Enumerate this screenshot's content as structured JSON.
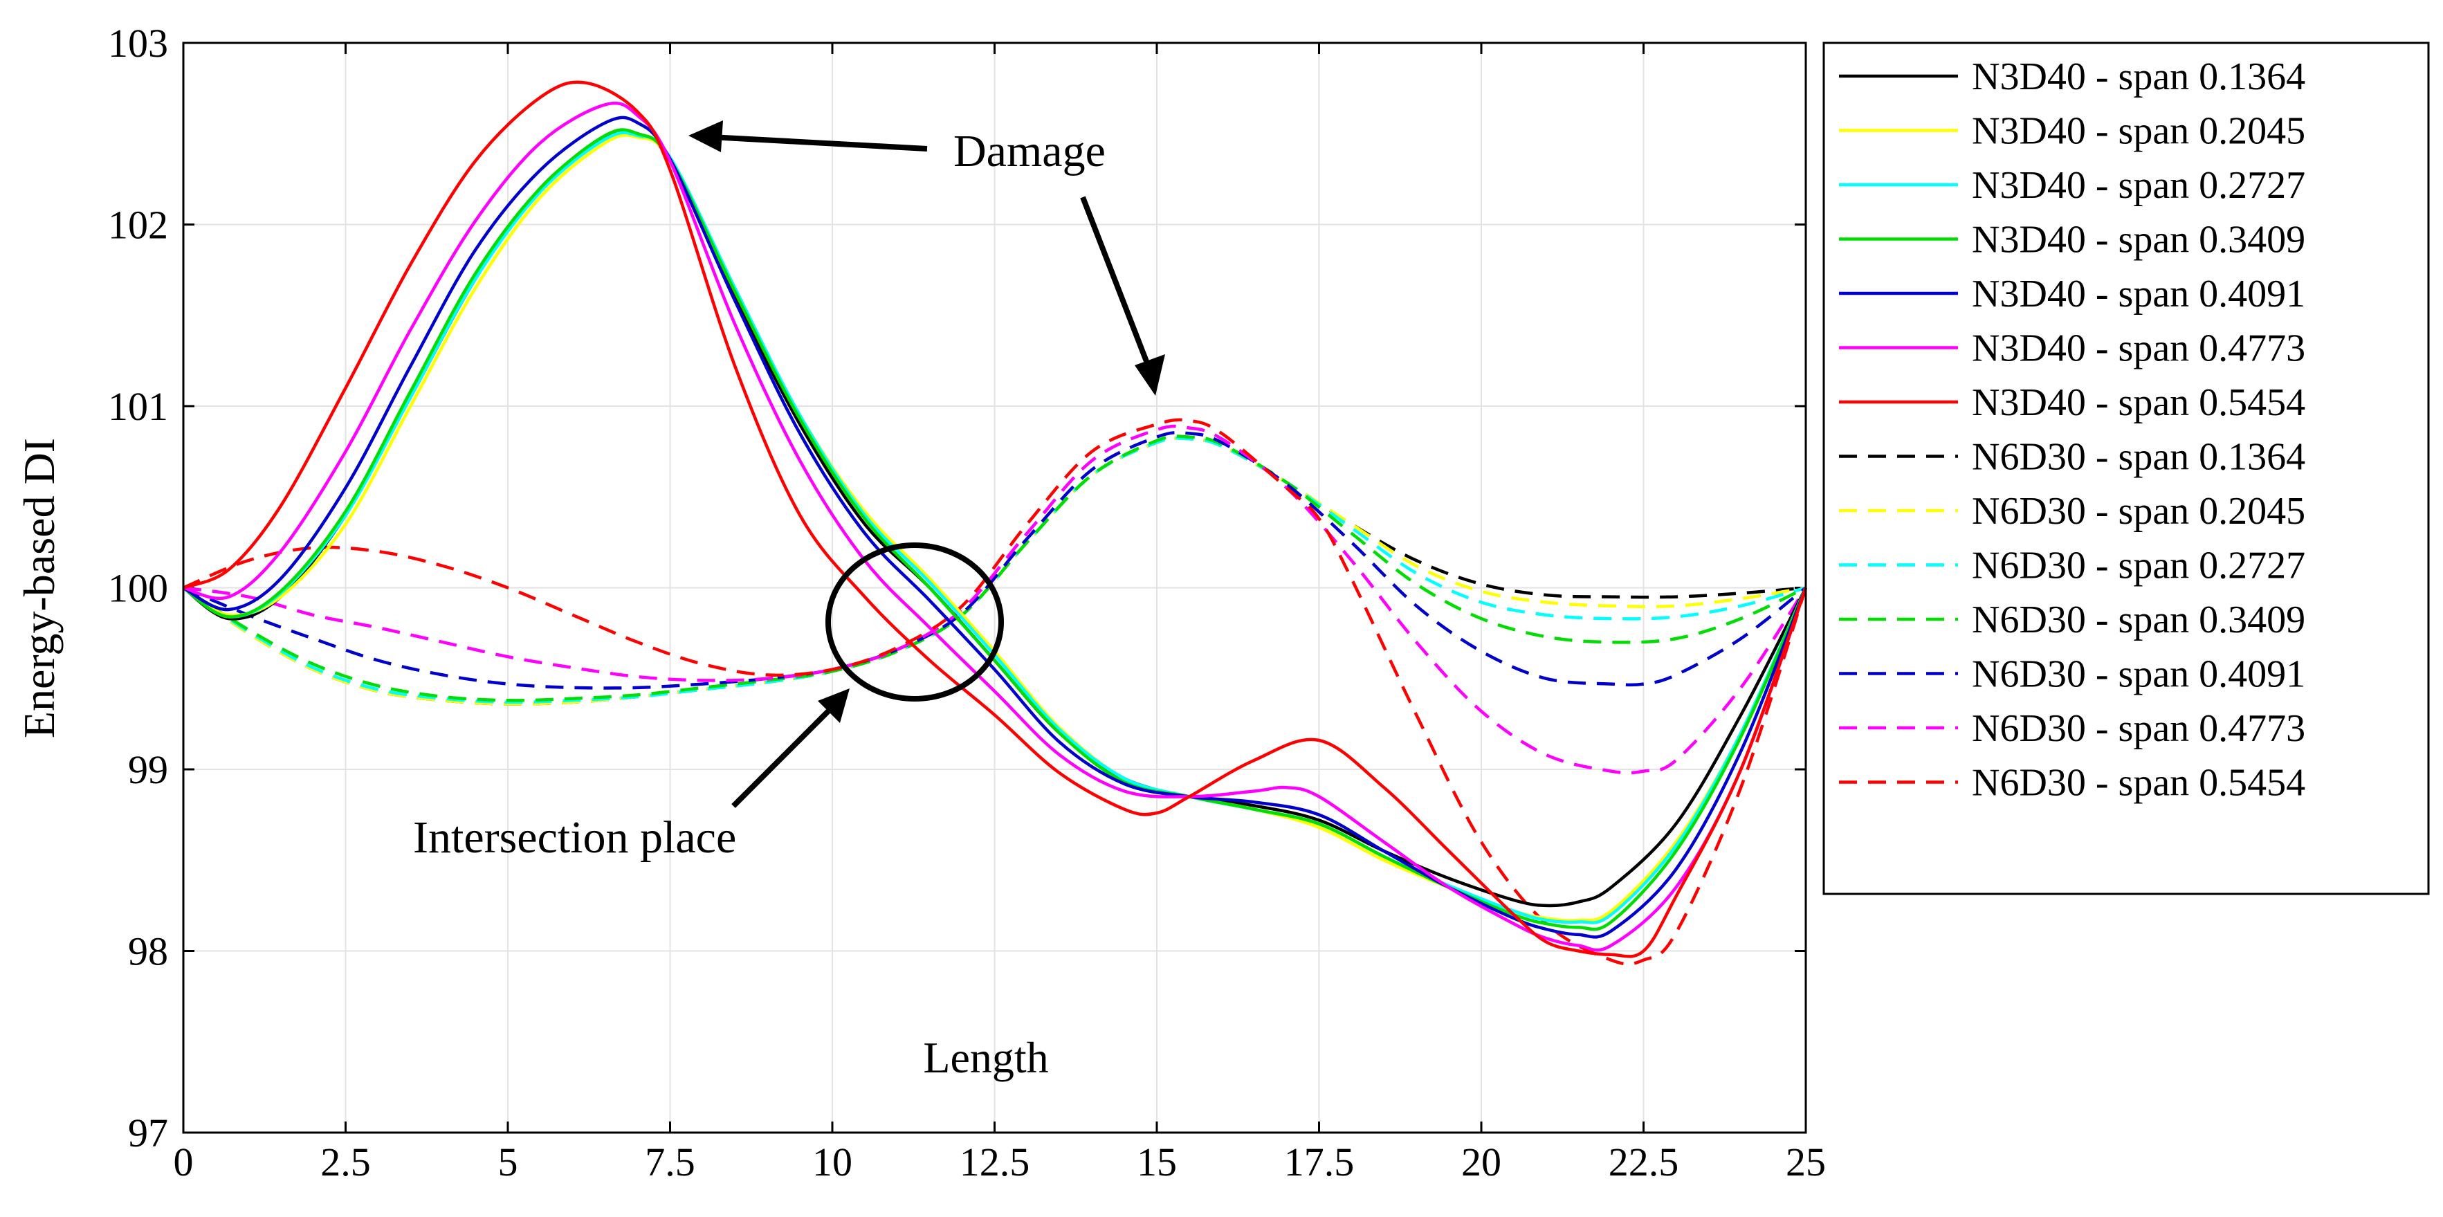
{
  "chart_data": {
    "type": "line",
    "title": "",
    "xlabel": "Length",
    "ylabel": "Energy-based DI",
    "xlim": [
      0,
      25
    ],
    "ylim": [
      97,
      103
    ],
    "xticks": [
      0,
      2.5,
      5,
      7.5,
      10,
      12.5,
      15,
      17.5,
      20,
      22.5,
      25
    ],
    "xtick_labels": [
      "0",
      "2.5",
      "5",
      "7.5",
      "10",
      "12.5",
      "15",
      "17.5",
      "20",
      "22.5",
      "25"
    ],
    "yticks": [
      97,
      98,
      99,
      100,
      101,
      102,
      103
    ],
    "ytick_labels": [
      "97",
      "98",
      "99",
      "100",
      "101",
      "102",
      "103"
    ],
    "grid": true,
    "legend_position": "outside-right",
    "series": [
      {
        "name": "N3D40 - span 0.1364",
        "color": "#000000",
        "dash": "solid",
        "x": [
          0,
          0.7,
          1.5,
          2.5,
          3.5,
          4.5,
          5.5,
          6.5,
          7.0,
          7.5,
          8.5,
          9.5,
          10.5,
          11.5,
          12.5,
          13.5,
          14.5,
          15.5,
          16.5,
          17.5,
          18.5,
          19.5,
          20.5,
          21.0,
          21.5,
          22.0,
          23.0,
          24.0,
          25
        ],
        "y": [
          100,
          99.83,
          99.95,
          100.4,
          101.05,
          101.7,
          102.2,
          102.48,
          102.5,
          102.35,
          101.6,
          100.9,
          100.35,
          100.0,
          99.6,
          99.2,
          98.95,
          98.85,
          98.8,
          98.72,
          98.55,
          98.4,
          98.28,
          98.25,
          98.27,
          98.35,
          98.7,
          99.3,
          100
        ]
      },
      {
        "name": "N3D40 - span 0.2045",
        "color": "#ffff00",
        "dash": "solid",
        "x": [
          0,
          0.7,
          1.5,
          2.5,
          3.5,
          4.5,
          5.5,
          6.5,
          7.0,
          7.5,
          8.5,
          9.5,
          10.5,
          11.5,
          12.5,
          13.5,
          14.5,
          15.5,
          16.5,
          17.5,
          18.5,
          19.5,
          20.5,
          21.0,
          21.5,
          22.0,
          23.0,
          24.0,
          25
        ],
        "y": [
          100,
          99.85,
          99.95,
          100.35,
          101.0,
          101.65,
          102.15,
          102.45,
          102.48,
          102.36,
          101.65,
          100.95,
          100.42,
          100.05,
          99.65,
          99.23,
          98.95,
          98.85,
          98.78,
          98.68,
          98.5,
          98.35,
          98.22,
          98.18,
          98.17,
          98.22,
          98.6,
          99.2,
          100
        ]
      },
      {
        "name": "N3D40 - span 0.2727",
        "color": "#00ffff",
        "dash": "solid",
        "x": [
          0,
          0.7,
          1.5,
          2.5,
          3.5,
          4.5,
          5.5,
          6.5,
          7.0,
          7.5,
          8.5,
          9.5,
          10.5,
          11.5,
          12.5,
          13.5,
          14.5,
          15.5,
          16.5,
          17.5,
          18.5,
          19.5,
          20.5,
          21.0,
          21.5,
          22.0,
          23.0,
          24.0,
          25
        ],
        "y": [
          100,
          99.84,
          99.97,
          100.4,
          101.05,
          101.7,
          102.18,
          102.47,
          102.49,
          102.37,
          101.65,
          100.95,
          100.4,
          100.03,
          99.63,
          99.22,
          98.95,
          98.85,
          98.78,
          98.7,
          98.52,
          98.36,
          98.22,
          98.17,
          98.16,
          98.2,
          98.58,
          99.2,
          100
        ]
      },
      {
        "name": "N3D40 - span 0.3409",
        "color": "#00dd00",
        "dash": "solid",
        "x": [
          0,
          0.7,
          1.5,
          2.5,
          3.5,
          4.5,
          5.5,
          6.5,
          7.0,
          7.5,
          8.5,
          9.5,
          10.5,
          11.5,
          12.5,
          13.5,
          14.5,
          15.5,
          16.5,
          17.5,
          18.5,
          19.5,
          20.5,
          21.0,
          21.5,
          22.0,
          23.0,
          24.0,
          25
        ],
        "y": [
          100,
          99.84,
          99.98,
          100.42,
          101.08,
          101.73,
          102.2,
          102.49,
          102.5,
          102.36,
          101.63,
          100.93,
          100.38,
          100.0,
          99.6,
          99.2,
          98.93,
          98.85,
          98.78,
          98.7,
          98.52,
          98.35,
          98.2,
          98.15,
          98.13,
          98.16,
          98.55,
          99.18,
          100
        ]
      },
      {
        "name": "N3D40 - span 0.4091",
        "color": "#0000cc",
        "dash": "solid",
        "x": [
          0,
          0.7,
          1.5,
          2.5,
          3.5,
          4.5,
          5.5,
          6.5,
          7.0,
          7.5,
          8.5,
          9.5,
          10.5,
          11.5,
          12.5,
          13.5,
          14.5,
          15.5,
          16.5,
          17.5,
          18.5,
          19.5,
          20.5,
          21.0,
          21.5,
          22.0,
          23.0,
          24.0,
          25
        ],
        "y": [
          100,
          99.88,
          100.05,
          100.55,
          101.22,
          101.86,
          102.3,
          102.56,
          102.56,
          102.36,
          101.58,
          100.85,
          100.3,
          99.93,
          99.55,
          99.15,
          98.92,
          98.85,
          98.82,
          98.75,
          98.55,
          98.35,
          98.18,
          98.12,
          98.09,
          98.11,
          98.45,
          99.1,
          100
        ]
      },
      {
        "name": "N3D40 - span 0.4773",
        "color": "#ff00ff",
        "dash": "solid",
        "x": [
          0,
          0.7,
          1.5,
          2.5,
          3.5,
          4.5,
          5.5,
          6.5,
          7.0,
          7.5,
          8.5,
          9.5,
          10.5,
          11.5,
          12.5,
          13.5,
          14.5,
          15.5,
          16.5,
          17.0,
          17.5,
          18.5,
          19.5,
          20.5,
          21.0,
          21.5,
          22.0,
          23.0,
          24.0,
          25
        ],
        "y": [
          100,
          99.95,
          100.2,
          100.75,
          101.42,
          102.02,
          102.45,
          102.66,
          102.6,
          102.35,
          101.45,
          100.7,
          100.15,
          99.78,
          99.43,
          99.08,
          98.88,
          98.85,
          98.88,
          98.9,
          98.85,
          98.6,
          98.35,
          98.15,
          98.07,
          98.03,
          98.03,
          98.35,
          99.0,
          100
        ]
      },
      {
        "name": "N3D40 - span 0.5454",
        "color": "#ff0000",
        "dash": "solid",
        "x": [
          0,
          0.7,
          1.5,
          2.5,
          3.5,
          4.5,
          5.5,
          6.2,
          7.0,
          7.5,
          8.5,
          9.5,
          10.5,
          11.5,
          12.5,
          13.5,
          14.5,
          15.0,
          15.5,
          16.5,
          17.5,
          18.5,
          19.5,
          20.5,
          21.0,
          21.5,
          22.0,
          22.5,
          23.0,
          24.0,
          25
        ],
        "y": [
          100,
          100.1,
          100.45,
          101.1,
          101.78,
          102.35,
          102.7,
          102.78,
          102.62,
          102.3,
          101.22,
          100.4,
          99.95,
          99.6,
          99.3,
          98.98,
          98.78,
          98.76,
          98.85,
          99.05,
          99.16,
          98.9,
          98.55,
          98.2,
          98.05,
          98.0,
          97.98,
          98.0,
          98.3,
          99.0,
          100
        ]
      },
      {
        "name": "N6D30 - span 0.1364",
        "color": "#000000",
        "dash": "dashed",
        "x": [
          0,
          1,
          2,
          3,
          4,
          5,
          6,
          7,
          8,
          9,
          10,
          11,
          12,
          13,
          14,
          15,
          15.5,
          16,
          17,
          18,
          19,
          20,
          21,
          22,
          23,
          24,
          25
        ],
        "y": [
          100,
          99.75,
          99.55,
          99.43,
          99.38,
          99.36,
          99.37,
          99.4,
          99.44,
          99.48,
          99.54,
          99.65,
          99.85,
          100.25,
          100.62,
          100.8,
          100.82,
          100.78,
          100.58,
          100.35,
          100.15,
          100.02,
          99.96,
          99.95,
          99.95,
          99.97,
          100
        ]
      },
      {
        "name": "N6D30 - span 0.2045",
        "color": "#ffff00",
        "dash": "dashed",
        "x": [
          0,
          1,
          2,
          3,
          4,
          5,
          6,
          7,
          8,
          9,
          10,
          11,
          12,
          13,
          14,
          15,
          15.5,
          16,
          17,
          18,
          19,
          20,
          21,
          22,
          23,
          24,
          25
        ],
        "y": [
          100,
          99.75,
          99.55,
          99.43,
          99.38,
          99.36,
          99.37,
          99.4,
          99.44,
          99.48,
          99.54,
          99.65,
          99.85,
          100.25,
          100.62,
          100.8,
          100.82,
          100.78,
          100.58,
          100.35,
          100.12,
          99.98,
          99.92,
          99.9,
          99.9,
          99.94,
          100
        ]
      },
      {
        "name": "N6D30 - span 0.2727",
        "color": "#00ffff",
        "dash": "dashed",
        "x": [
          0,
          1,
          2,
          3,
          4,
          5,
          6,
          7,
          8,
          9,
          10,
          11,
          12,
          13,
          14,
          15,
          15.5,
          16,
          17,
          18,
          19,
          20,
          21,
          22,
          23,
          24,
          25
        ],
        "y": [
          100,
          99.76,
          99.56,
          99.44,
          99.39,
          99.37,
          99.38,
          99.4,
          99.44,
          99.48,
          99.54,
          99.65,
          99.85,
          100.25,
          100.62,
          100.8,
          100.82,
          100.78,
          100.58,
          100.33,
          100.08,
          99.92,
          99.85,
          99.83,
          99.84,
          99.9,
          100
        ]
      },
      {
        "name": "N6D30 - span 0.3409",
        "color": "#00dd00",
        "dash": "dashed",
        "x": [
          0,
          1,
          2,
          3,
          4,
          5,
          6,
          7,
          8,
          9,
          10,
          11,
          12,
          13,
          14,
          15,
          15.5,
          16,
          17,
          18,
          19,
          20,
          21,
          22,
          23,
          24,
          25
        ],
        "y": [
          100,
          99.77,
          99.58,
          99.46,
          99.4,
          99.38,
          99.39,
          99.41,
          99.45,
          99.49,
          99.54,
          99.65,
          99.85,
          100.25,
          100.62,
          100.81,
          100.83,
          100.79,
          100.58,
          100.3,
          100.02,
          99.83,
          99.73,
          99.7,
          99.72,
          99.83,
          100
        ]
      },
      {
        "name": "N6D30 - span 0.4091",
        "color": "#0000cc",
        "dash": "dashed",
        "x": [
          0,
          1,
          2,
          3,
          4,
          5,
          6,
          7,
          8,
          9,
          10,
          11,
          12,
          13,
          14,
          15,
          15.5,
          16,
          17,
          18,
          19,
          20,
          21,
          22,
          22.5,
          23,
          24,
          25
        ],
        "y": [
          100,
          99.85,
          99.72,
          99.6,
          99.52,
          99.47,
          99.45,
          99.45,
          99.47,
          99.5,
          99.55,
          99.66,
          99.86,
          100.27,
          100.65,
          100.83,
          100.85,
          100.8,
          100.57,
          100.25,
          99.9,
          99.65,
          99.5,
          99.47,
          99.47,
          99.52,
          99.72,
          100
        ]
      },
      {
        "name": "N6D30 - span 0.4773",
        "color": "#ff00ff",
        "dash": "dashed",
        "x": [
          0,
          1,
          2,
          3,
          4,
          5,
          6,
          7,
          8,
          9,
          10,
          11,
          12,
          13,
          14,
          15,
          15.5,
          16,
          17,
          18,
          19,
          20,
          21,
          22,
          22.5,
          23,
          24,
          25
        ],
        "y": [
          100,
          99.95,
          99.85,
          99.78,
          99.7,
          99.62,
          99.56,
          99.51,
          99.49,
          99.5,
          99.55,
          99.66,
          99.88,
          100.3,
          100.7,
          100.87,
          100.88,
          100.82,
          100.55,
          100.15,
          99.7,
          99.32,
          99.08,
          98.99,
          98.99,
          99.05,
          99.45,
          100
        ]
      },
      {
        "name": "N6D30 - span 0.5454",
        "color": "#ff0000",
        "dash": "dashed",
        "x": [
          0,
          1,
          2,
          3,
          4,
          5,
          6,
          7,
          8,
          9,
          10,
          11,
          12,
          13,
          14,
          15,
          15.5,
          16,
          17,
          17.5,
          18,
          19,
          20,
          21,
          22,
          22.5,
          23,
          24,
          25
        ],
        "y": [
          100,
          100.15,
          100.22,
          100.2,
          100.12,
          100.0,
          99.85,
          99.7,
          99.58,
          99.52,
          99.55,
          99.67,
          99.9,
          100.35,
          100.75,
          100.9,
          100.92,
          100.85,
          100.55,
          100.38,
          100.05,
          99.3,
          98.6,
          98.15,
          97.95,
          97.95,
          98.1,
          98.9,
          100
        ]
      }
    ],
    "annotations": [
      {
        "text": "Damage"
      },
      {
        "text": "Intersection place"
      }
    ]
  }
}
